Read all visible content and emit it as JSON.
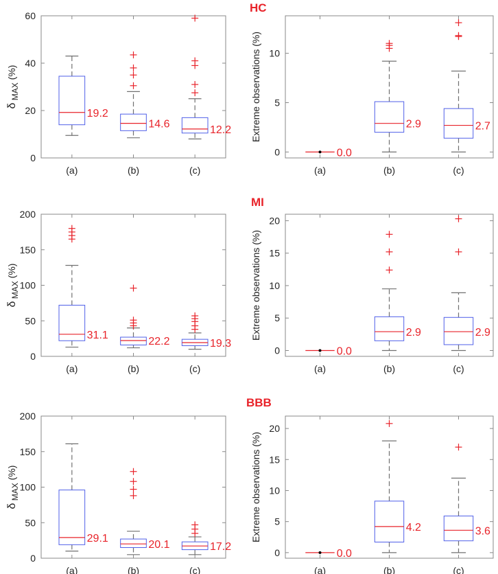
{
  "groups": [
    {
      "title": "HC"
    },
    {
      "title": "MI"
    },
    {
      "title": "BBB"
    }
  ],
  "chart_data": [
    {
      "type": "boxplot",
      "group": "HC",
      "ylabel_main": "δ",
      "ylabel_sub": "MAX",
      "ylabel_unit": "(%)",
      "categories": [
        "(a)",
        "(b)",
        "(c)"
      ],
      "ylim": [
        0,
        60
      ],
      "yticks": [
        0,
        20,
        40,
        60
      ],
      "boxes": [
        {
          "q1": 14,
          "median": 19.2,
          "q3": 34.5,
          "lo": 9.5,
          "hi": 43,
          "outliers": [],
          "label": "19.2"
        },
        {
          "q1": 11.5,
          "median": 14.6,
          "q3": 18.5,
          "lo": 8.5,
          "hi": 28,
          "outliers": [
            30.5,
            35,
            38,
            43.5
          ],
          "label": "14.6"
        },
        {
          "q1": 10.5,
          "median": 12.2,
          "q3": 17,
          "lo": 8,
          "hi": 25,
          "outliers": [
            27.5,
            31,
            39,
            41,
            59
          ],
          "label": "12.2"
        }
      ]
    },
    {
      "type": "boxplot",
      "group": "HC",
      "ylabel": "Extreme observations (%)",
      "categories": [
        "(a)",
        "(b)",
        "(c)"
      ],
      "ylim": [
        -0.6,
        13.8
      ],
      "yticks": [
        0,
        5,
        10
      ],
      "boxes": [
        {
          "q1": 0,
          "median": 0,
          "q3": 0,
          "lo": 0,
          "hi": 0,
          "outliers": [],
          "label": "0.0",
          "dot": true
        },
        {
          "q1": 2,
          "median": 2.9,
          "q3": 5.1,
          "lo": 0,
          "hi": 9.2,
          "outliers": [
            10.5,
            10.8,
            11
          ],
          "label": "2.9"
        },
        {
          "q1": 1.4,
          "median": 2.7,
          "q3": 4.4,
          "lo": 0,
          "hi": 8.2,
          "outliers": [
            11.7,
            11.8,
            13.1
          ],
          "label": "2.7"
        }
      ]
    },
    {
      "type": "boxplot",
      "group": "MI",
      "ylabel_main": "δ",
      "ylabel_sub": "MAX",
      "ylabel_unit": "(%)",
      "categories": [
        "(a)",
        "(b)",
        "(c)"
      ],
      "ylim": [
        0,
        200
      ],
      "yticks": [
        0,
        50,
        100,
        150,
        200
      ],
      "boxes": [
        {
          "q1": 22,
          "median": 31.1,
          "q3": 72,
          "lo": 13,
          "hi": 128,
          "outliers": [
            165,
            170,
            175,
            180
          ],
          "label": "31.1"
        },
        {
          "q1": 16,
          "median": 22.2,
          "q3": 27,
          "lo": 12,
          "hi": 40,
          "outliers": [
            43,
            47,
            51,
            96
          ],
          "label": "22.2"
        },
        {
          "q1": 15,
          "median": 19.3,
          "q3": 24,
          "lo": 10,
          "hi": 33,
          "outliers": [
            38,
            43,
            49,
            53,
            57
          ],
          "label": "19.3"
        }
      ]
    },
    {
      "type": "boxplot",
      "group": "MI",
      "ylabel": "Extreme observations (%)",
      "categories": [
        "(a)",
        "(b)",
        "(c)"
      ],
      "ylim": [
        -0.9,
        21
      ],
      "yticks": [
        0,
        5,
        10,
        15,
        20
      ],
      "boxes": [
        {
          "q1": 0,
          "median": 0,
          "q3": 0,
          "lo": 0,
          "hi": 0,
          "outliers": [],
          "label": "0.0",
          "dot": true
        },
        {
          "q1": 1.5,
          "median": 2.9,
          "q3": 5.2,
          "lo": 0,
          "hi": 9.5,
          "outliers": [
            12.4,
            15.2,
            17.9
          ],
          "label": "2.9"
        },
        {
          "q1": 0.9,
          "median": 2.9,
          "q3": 5.1,
          "lo": 0,
          "hi": 8.9,
          "outliers": [
            15.2,
            20.3
          ],
          "label": "2.9"
        }
      ]
    },
    {
      "type": "boxplot",
      "group": "BBB",
      "ylabel_main": "δ",
      "ylabel_sub": "MAX",
      "ylabel_unit": "(%)",
      "categories": [
        "(a)",
        "(b)",
        "(c)"
      ],
      "ylim": [
        0,
        200
      ],
      "yticks": [
        0,
        50,
        100,
        150,
        200
      ],
      "boxes": [
        {
          "q1": 19,
          "median": 29.1,
          "q3": 96,
          "lo": 10,
          "hi": 161,
          "outliers": [],
          "label": "29.1"
        },
        {
          "q1": 15,
          "median": 20.1,
          "q3": 27,
          "lo": 5,
          "hi": 38,
          "outliers": [
            88,
            97,
            108,
            122
          ],
          "label": "20.1"
        },
        {
          "q1": 12,
          "median": 17.2,
          "q3": 23,
          "lo": 5,
          "hi": 30,
          "outliers": [
            35,
            41,
            47
          ],
          "label": "17.2"
        }
      ]
    },
    {
      "type": "boxplot",
      "group": "BBB",
      "ylabel": "Extreme observations (%)",
      "categories": [
        "(a)",
        "(b)",
        "(c)"
      ],
      "ylim": [
        -0.9,
        22
      ],
      "yticks": [
        0,
        5,
        10,
        15,
        20
      ],
      "boxes": [
        {
          "q1": 0,
          "median": 0,
          "q3": 0,
          "lo": 0,
          "hi": 0,
          "outliers": [],
          "label": "0.0",
          "dot": true
        },
        {
          "q1": 1.7,
          "median": 4.2,
          "q3": 8.3,
          "lo": 0,
          "hi": 18,
          "outliers": [
            20.8
          ],
          "label": "4.2"
        },
        {
          "q1": 1.9,
          "median": 3.6,
          "q3": 5.9,
          "lo": 0,
          "hi": 12,
          "outliers": [
            17
          ],
          "label": "3.6"
        }
      ]
    }
  ],
  "colors": {
    "box": "#4f5fe8",
    "median": "#e8232a",
    "whisker": "#707070",
    "outlier": "#e8232a",
    "label": "#e8232a",
    "axis": "#888888",
    "text": "#222222"
  }
}
